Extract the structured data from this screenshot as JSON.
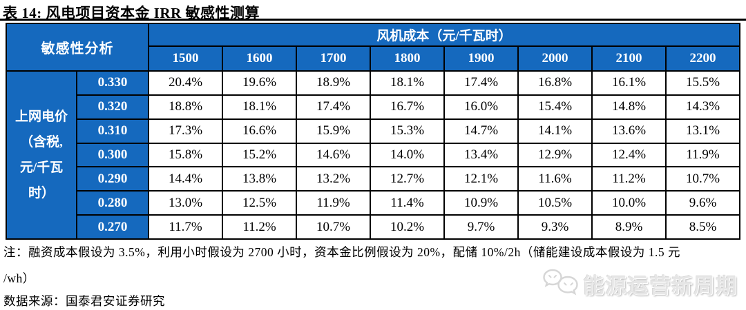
{
  "title": "表 14: 风电项目资本金 IRR 敏感性测算",
  "table": {
    "corner_label": "敏感性分析",
    "col_group_label": "风机成本（元/千瓦时）",
    "row_group_label": "上网电价\n（含税,\n元/千瓦\n时）",
    "columns": [
      "1500",
      "1600",
      "1700",
      "1800",
      "1900",
      "2000",
      "2100",
      "2200"
    ],
    "rows": [
      {
        "label": "0.330",
        "values": [
          "20.4%",
          "19.6%",
          "18.9%",
          "18.1%",
          "17.4%",
          "16.8%",
          "16.1%",
          "15.5%"
        ]
      },
      {
        "label": "0.320",
        "values": [
          "18.8%",
          "18.1%",
          "17.4%",
          "16.7%",
          "16.0%",
          "15.4%",
          "14.8%",
          "14.3%"
        ]
      },
      {
        "label": "0.310",
        "values": [
          "17.3%",
          "16.6%",
          "15.9%",
          "15.3%",
          "14.7%",
          "14.1%",
          "13.6%",
          "13.1%"
        ]
      },
      {
        "label": "0.300",
        "values": [
          "15.8%",
          "15.2%",
          "14.6%",
          "14.0%",
          "13.4%",
          "12.9%",
          "12.4%",
          "11.9%"
        ]
      },
      {
        "label": "0.290",
        "values": [
          "14.4%",
          "13.8%",
          "13.2%",
          "12.7%",
          "12.1%",
          "11.6%",
          "11.2%",
          "10.7%"
        ]
      },
      {
        "label": "0.280",
        "values": [
          "13.0%",
          "12.5%",
          "11.9%",
          "11.4%",
          "10.9%",
          "10.5%",
          "10.0%",
          "9.6%"
        ]
      },
      {
        "label": "0.270",
        "values": [
          "11.7%",
          "11.2%",
          "10.7%",
          "10.2%",
          "9.7%",
          "9.3%",
          "8.9%",
          "8.5%"
        ]
      }
    ]
  },
  "notes": {
    "line1": "注：融资成本假设为 3.5%，利用小时假设为 2700 小时，资本金比例假设为 20%，配储 10%/2h（储能建设成本假设为 1.5 元",
    "line2": "/wh）",
    "source": "数据来源：国泰君安证券研究"
  },
  "watermark": {
    "text": "能源运营新周期",
    "icon": "wechat-icon"
  },
  "colors": {
    "header_blue": "#1569BE",
    "border_black": "#000000",
    "cell_text": "#000000",
    "header_text": "#ffffff"
  }
}
